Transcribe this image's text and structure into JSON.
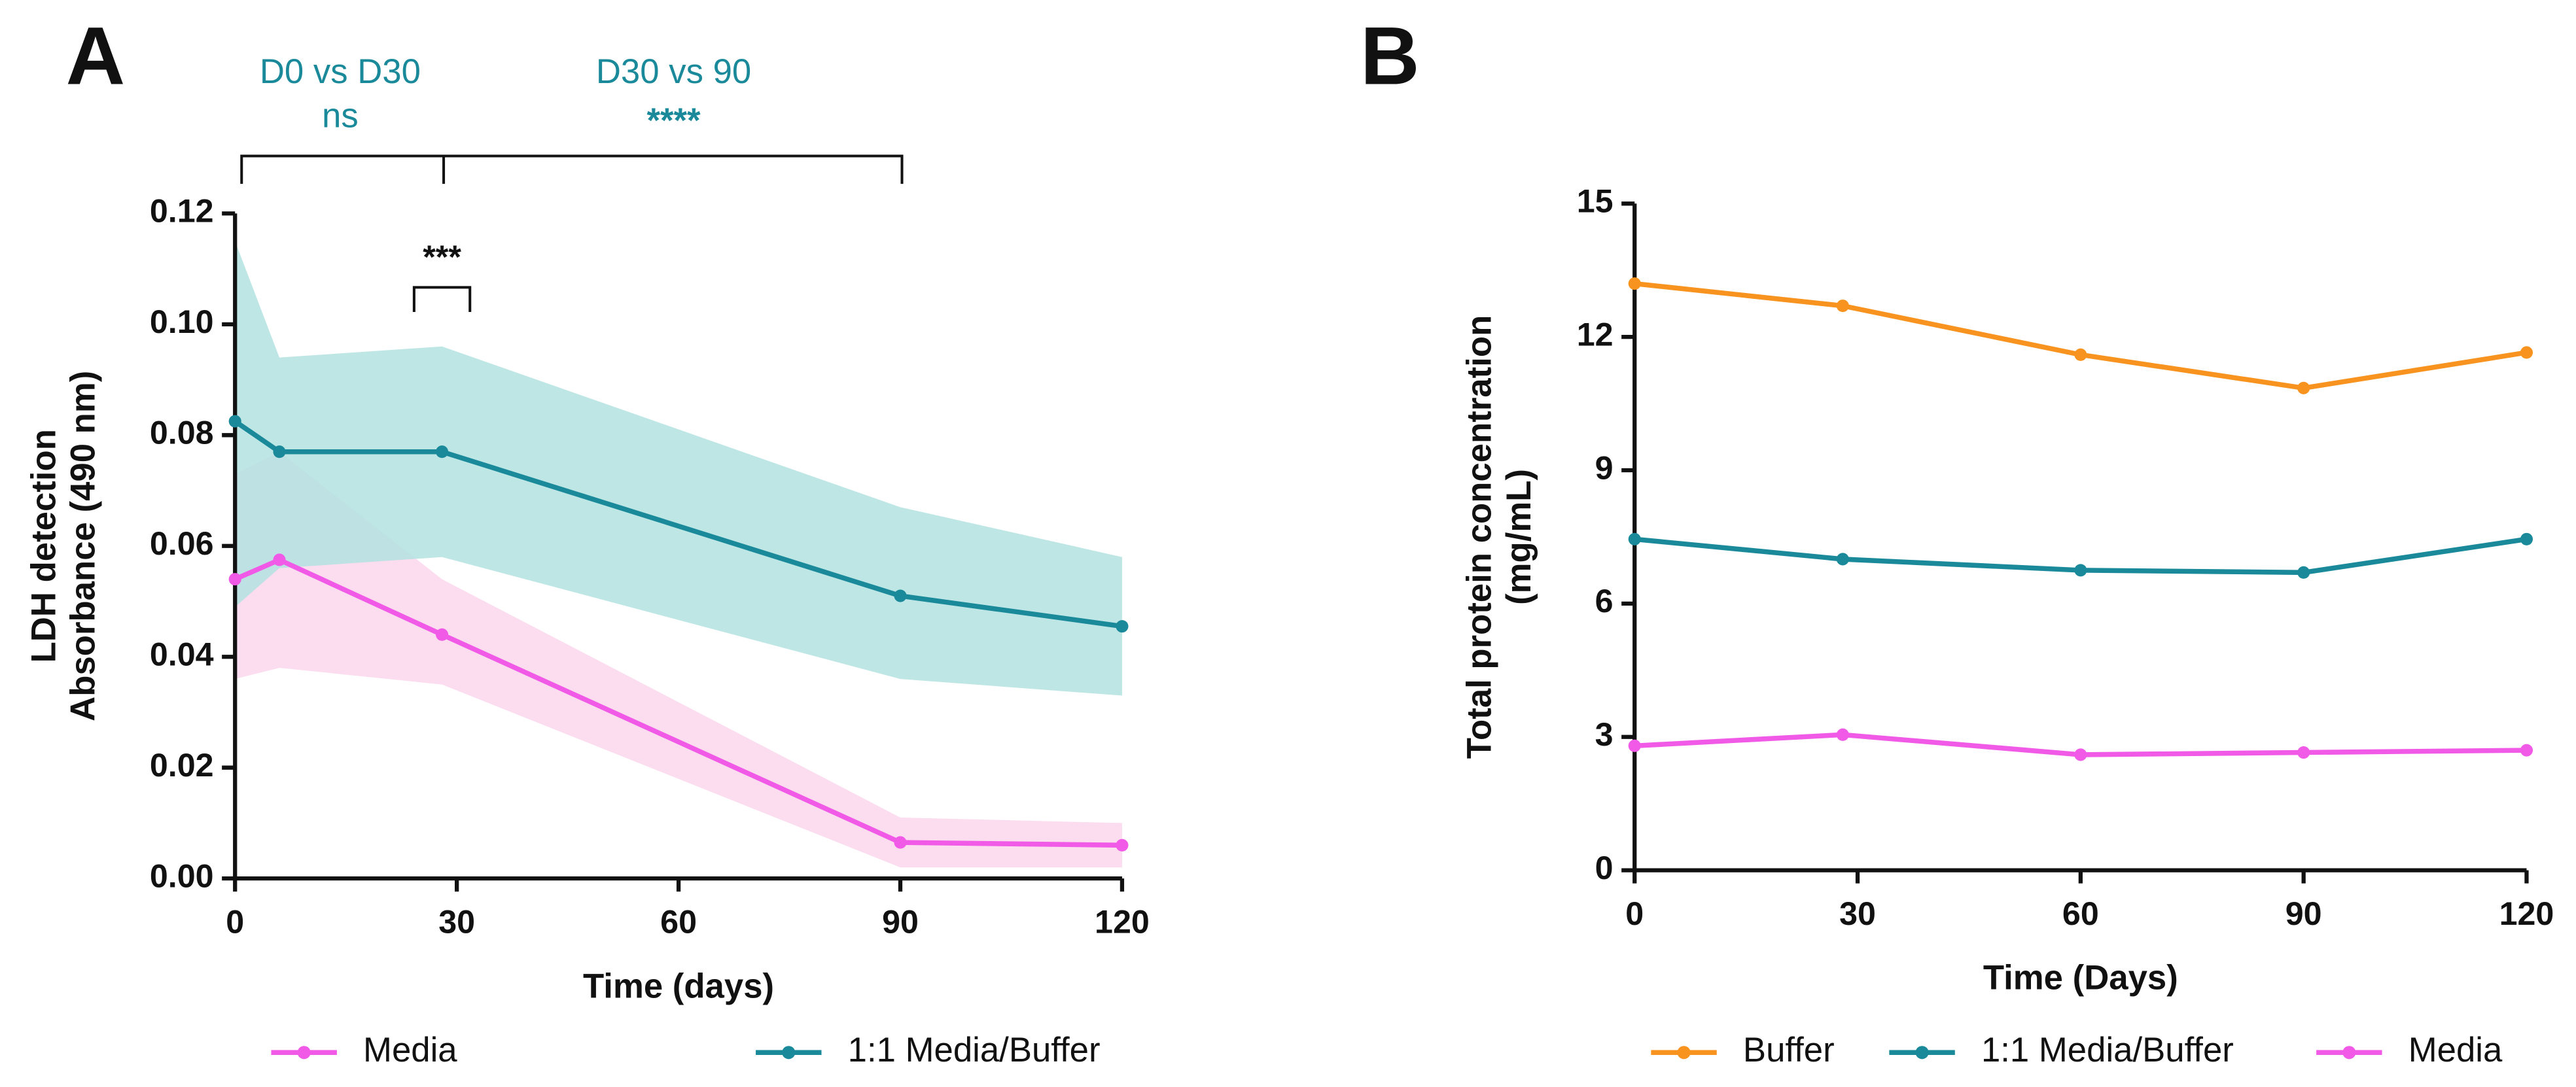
{
  "chart_data": [
    {
      "type": "line",
      "panel": "A",
      "xlabel": "Time (days)",
      "ylabel": [
        "LDH detection",
        "Absorbance (490 nm)"
      ],
      "xlim": [
        0,
        120
      ],
      "xticks": [
        0,
        30,
        60,
        90,
        120
      ],
      "ylim": [
        0,
        0.12
      ],
      "yticks": [
        {
          "value": 0,
          "label": "0.00"
        },
        {
          "value": 0.02,
          "label": "0.02"
        },
        {
          "value": 0.04,
          "label": "0.04"
        },
        {
          "value": 0.06,
          "label": "0.06"
        },
        {
          "value": 0.08,
          "label": "0.08"
        },
        {
          "value": 0.1,
          "label": "0.10"
        },
        {
          "value": 0.12,
          "label": "0.12"
        }
      ],
      "annotations": [
        "D0 vs D30",
        "ns",
        "D30 vs 90",
        "****",
        "***"
      ],
      "series": [
        {
          "name": "Media",
          "color": "#f05ae6",
          "band_color": "#fcd6ec",
          "x": [
            0,
            6,
            28,
            90,
            120
          ],
          "values": [
            0.054,
            0.0575,
            0.044,
            0.0065,
            0.006
          ],
          "lower": [
            0.036,
            0.038,
            0.035,
            0.002,
            0.002
          ],
          "upper": [
            0.073,
            0.077,
            0.054,
            0.011,
            0.01
          ]
        },
        {
          "name": "1:1 Media/Buffer",
          "color": "#1a8a9b",
          "band_color": "#b3e2e1",
          "x": [
            0,
            6,
            28,
            90,
            120
          ],
          "values": [
            0.0825,
            0.077,
            0.077,
            0.051,
            0.0455
          ],
          "lower": [
            0.049,
            0.056,
            0.058,
            0.036,
            0.033
          ],
          "upper": [
            0.115,
            0.094,
            0.096,
            0.067,
            0.058
          ]
        }
      ]
    },
    {
      "type": "line",
      "panel": "B",
      "xlabel": "Time (Days)",
      "ylabel": [
        "Total protein concentration",
        "(mg/mL)"
      ],
      "xlim": [
        0,
        120
      ],
      "xticks": [
        0,
        30,
        60,
        90,
        120
      ],
      "ylim": [
        0,
        15
      ],
      "yticks": [
        0,
        3,
        6,
        9,
        12,
        15
      ],
      "series": [
        {
          "name": "Buffer",
          "color": "#f7931e",
          "x": [
            0,
            28,
            60,
            90,
            120
          ],
          "values": [
            13.2,
            12.7,
            11.6,
            10.85,
            11.65
          ]
        },
        {
          "name": "1:1 Media/Buffer",
          "color": "#1a8a9b",
          "x": [
            0,
            28,
            60,
            90,
            120
          ],
          "values": [
            7.45,
            7.0,
            6.75,
            6.7,
            7.45
          ]
        },
        {
          "name": "Media",
          "color": "#f05ae6",
          "x": [
            0,
            28,
            60,
            90,
            120
          ],
          "values": [
            2.8,
            3.05,
            2.6,
            2.65,
            2.7
          ]
        }
      ]
    }
  ]
}
